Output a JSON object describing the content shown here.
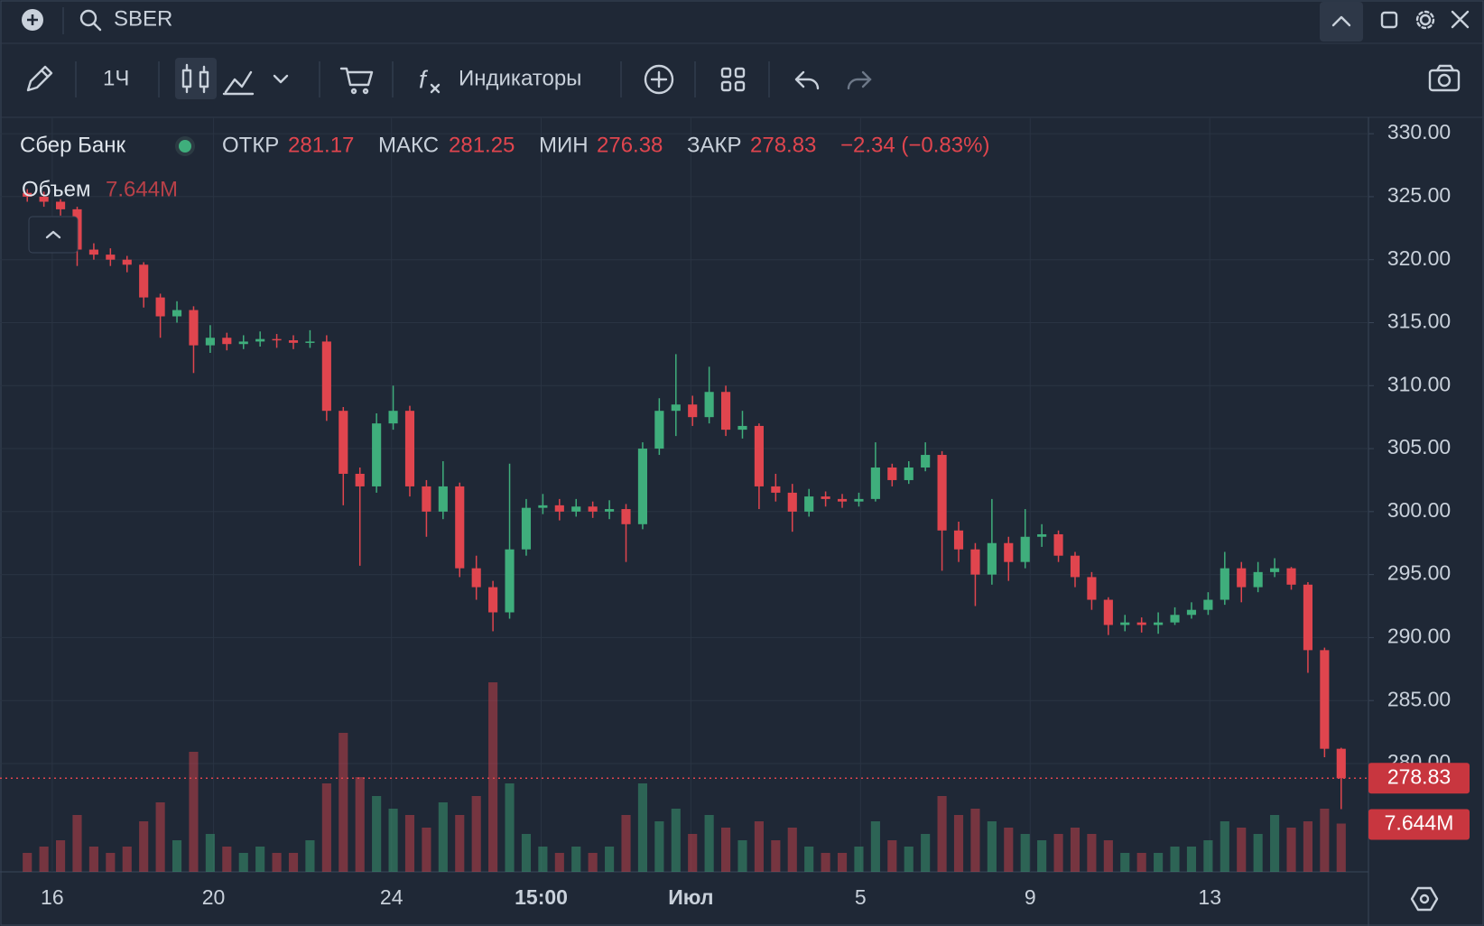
{
  "toolbar": {
    "symbol": "SBER",
    "interval": "1Ч",
    "indicators": "Индикаторы"
  },
  "chart_data": {
    "type": "candlestick",
    "title": "Сбер Банк",
    "legend": {
      "open_label": "ОТКР",
      "open": 281.17,
      "high_label": "МАКС",
      "high": 281.25,
      "low_label": "МИН",
      "low": 276.38,
      "close_label": "ЗАКР",
      "close": 278.83,
      "change": "−2.34 (−0.83%)"
    },
    "volume_title": "Объем",
    "volume_label": "7.644M",
    "up_color": "#3fae7c",
    "down_color": "#e0454e",
    "grid": true,
    "xlim": [
      -0.5,
      79.5
    ],
    "xticks": [
      {
        "value": 1.5,
        "label": "16"
      },
      {
        "value": 11.2,
        "label": "20"
      },
      {
        "value": 21.9,
        "label": "24"
      },
      {
        "value": 30.9,
        "label": "15:00"
      },
      {
        "value": 39.9,
        "label": "Июл"
      },
      {
        "value": 50.1,
        "label": "5"
      },
      {
        "value": 60.3,
        "label": "9"
      },
      {
        "value": 71.1,
        "label": "13"
      }
    ],
    "ylim": [
      271.4,
      331.3
    ],
    "yticks": [
      {
        "value": 280,
        "label": "280.00"
      },
      {
        "value": 285,
        "label": "285.00"
      },
      {
        "value": 290,
        "label": "290.00"
      },
      {
        "value": 295,
        "label": "295.00"
      },
      {
        "value": 300,
        "label": "300.00"
      },
      {
        "value": 305,
        "label": "305.00"
      },
      {
        "value": 310,
        "label": "310.00"
      },
      {
        "value": 315,
        "label": "315.00"
      },
      {
        "value": 320,
        "label": "320.00"
      },
      {
        "value": 325,
        "label": "325.00"
      },
      {
        "value": 330,
        "label": "330.00"
      }
    ],
    "volume_lim": [
      0,
      30000000
    ],
    "open": [
      325.3,
      325.0,
      324.6,
      324.0,
      320.8,
      320.4,
      320.0,
      319.6,
      317.0,
      315.5,
      316.0,
      313.2,
      313.8,
      313.3,
      313.5,
      313.7,
      313.6,
      313.4,
      313.5,
      308.0,
      303.0,
      302.0,
      307.0,
      308.0,
      302.0,
      300.0,
      302.0,
      295.5,
      294.0,
      292.0,
      297.0,
      300.3,
      300.5,
      300.0,
      300.4,
      300.0,
      300.2,
      299.0,
      305.0,
      308.0,
      308.5,
      307.5,
      309.5,
      306.5,
      306.8,
      302.0,
      301.5,
      300.0,
      301.2,
      301.0,
      300.8,
      301.0,
      303.5,
      302.5,
      303.5,
      304.5,
      298.5,
      297.0,
      295.0,
      297.5,
      296.0,
      298.0,
      298.2,
      296.5,
      294.8,
      293.0,
      291.0,
      291.2,
      291.0,
      291.2,
      291.8,
      292.2,
      293.0,
      295.5,
      294.0,
      295.2,
      295.5,
      294.2,
      289.0,
      281.17
    ],
    "high": [
      325.6,
      325.4,
      324.8,
      324.2,
      321.3,
      320.9,
      320.3,
      319.8,
      317.3,
      316.7,
      316.3,
      314.8,
      314.2,
      314.0,
      314.3,
      314.1,
      314.0,
      314.4,
      314.0,
      308.3,
      303.5,
      307.8,
      310.0,
      308.4,
      302.5,
      304.0,
      302.3,
      296.5,
      294.5,
      303.8,
      301.0,
      301.4,
      301.0,
      301.0,
      300.8,
      300.9,
      300.6,
      305.5,
      309.0,
      312.5,
      309.2,
      311.5,
      310.0,
      308.0,
      307.0,
      303.0,
      302.2,
      301.8,
      301.6,
      301.4,
      301.5,
      305.5,
      303.8,
      304.0,
      305.5,
      304.8,
      299.2,
      297.5,
      301.0,
      298.0,
      300.2,
      299.0,
      298.5,
      296.8,
      295.2,
      293.2,
      291.8,
      291.6,
      292.0,
      292.4,
      292.8,
      293.6,
      296.8,
      296.0,
      296.0,
      296.3,
      295.6,
      294.4,
      289.2,
      281.25
    ],
    "low": [
      324.6,
      324.2,
      323.5,
      319.5,
      320.0,
      319.5,
      319.0,
      316.2,
      313.8,
      315.0,
      311.0,
      312.6,
      312.8,
      312.9,
      313.1,
      313.0,
      312.9,
      313.0,
      307.2,
      300.5,
      295.7,
      301.5,
      306.5,
      301.2,
      298.0,
      299.4,
      294.8,
      293.0,
      290.5,
      291.5,
      296.5,
      299.8,
      299.3,
      299.6,
      299.5,
      299.4,
      296.0,
      298.6,
      304.5,
      306.0,
      306.8,
      307.0,
      306.0,
      305.8,
      300.2,
      300.8,
      298.4,
      299.6,
      300.4,
      300.3,
      300.4,
      300.8,
      302.0,
      302.2,
      303.2,
      295.3,
      296.0,
      292.5,
      294.2,
      294.5,
      295.5,
      297.2,
      296.0,
      294.0,
      292.2,
      290.2,
      290.5,
      290.4,
      290.3,
      291.0,
      291.5,
      291.8,
      292.6,
      292.8,
      293.6,
      294.8,
      293.8,
      287.2,
      280.5,
      276.38
    ],
    "close": [
      325.0,
      324.6,
      324.0,
      320.8,
      320.4,
      320.0,
      319.6,
      317.0,
      315.5,
      316.0,
      313.2,
      313.8,
      313.3,
      313.5,
      313.7,
      313.6,
      313.4,
      313.5,
      308.0,
      303.0,
      302.0,
      307.0,
      308.0,
      302.0,
      300.0,
      302.0,
      295.5,
      294.0,
      292.0,
      297.0,
      300.3,
      300.5,
      300.0,
      300.4,
      300.0,
      300.2,
      299.0,
      305.0,
      308.0,
      308.5,
      307.5,
      309.5,
      306.5,
      306.8,
      302.0,
      301.5,
      300.0,
      301.2,
      301.0,
      300.8,
      301.0,
      303.5,
      302.5,
      303.5,
      304.5,
      298.5,
      297.0,
      295.0,
      297.5,
      296.0,
      298.0,
      298.2,
      296.5,
      294.8,
      293.0,
      291.0,
      291.2,
      291.0,
      291.2,
      291.8,
      292.2,
      293.0,
      295.5,
      294.0,
      295.2,
      295.5,
      294.2,
      289.0,
      281.17,
      278.83
    ],
    "volume": [
      3000000,
      4000000,
      5000000,
      9000000,
      4000000,
      3000000,
      4000000,
      8000000,
      11000000,
      5000000,
      19000000,
      6000000,
      4000000,
      3000000,
      4000000,
      3000000,
      3000000,
      5000000,
      14000000,
      22000000,
      15000000,
      12000000,
      10000000,
      9000000,
      7000000,
      11000000,
      9000000,
      12000000,
      30000000,
      14000000,
      6000000,
      4000000,
      3000000,
      4000000,
      3000000,
      4000000,
      9000000,
      14000000,
      8000000,
      10000000,
      6000000,
      9000000,
      7000000,
      5000000,
      8000000,
      5000000,
      7000000,
      4000000,
      3000000,
      3000000,
      4000000,
      8000000,
      5000000,
      4000000,
      6000000,
      12000000,
      9000000,
      10000000,
      8000000,
      7000000,
      6000000,
      5000000,
      6000000,
      7000000,
      6000000,
      5000000,
      3000000,
      3000000,
      3000000,
      4000000,
      4000000,
      5000000,
      8000000,
      7000000,
      6000000,
      9000000,
      7000000,
      8000000,
      10000000,
      7644000
    ]
  }
}
